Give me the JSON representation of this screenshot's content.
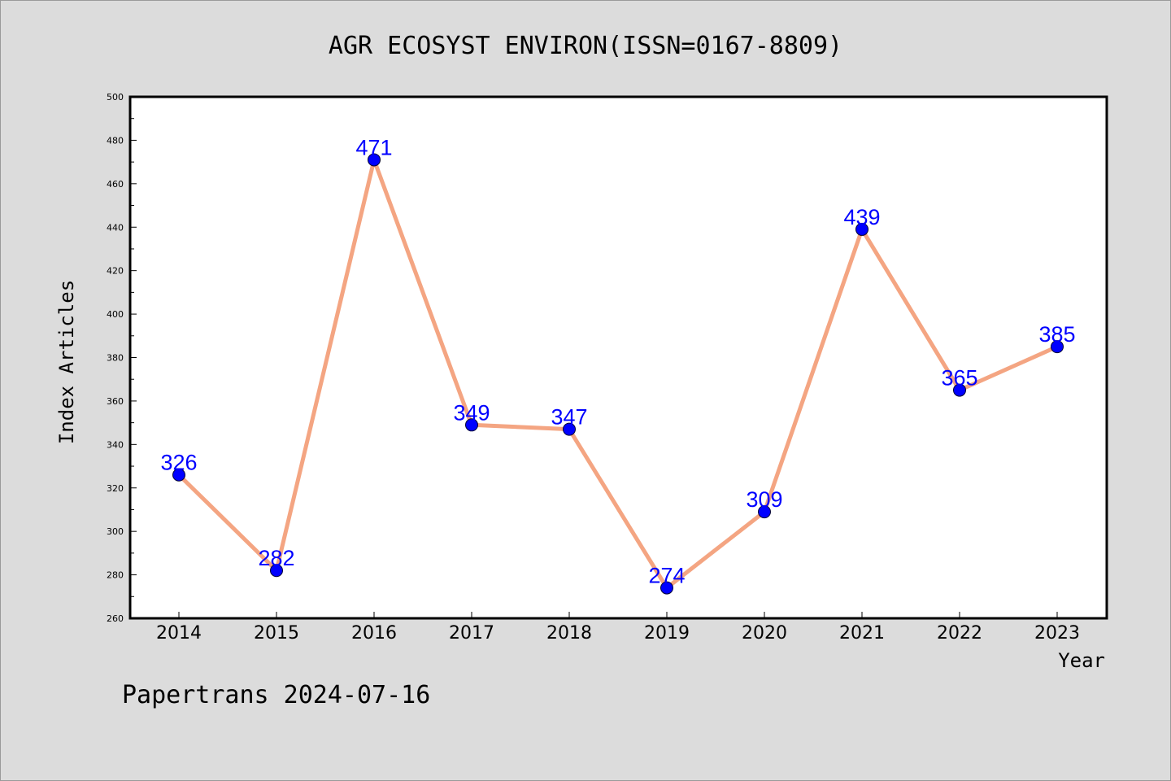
{
  "chart_data": {
    "type": "line",
    "title": "AGR ECOSYST ENVIRON(ISSN=0167-8809)",
    "xlabel": "Year",
    "ylabel": "Index Articles",
    "categories": [
      "2014",
      "2015",
      "2016",
      "2017",
      "2018",
      "2019",
      "2020",
      "2021",
      "2022",
      "2023"
    ],
    "values": [
      326,
      282,
      471,
      349,
      347,
      274,
      309,
      439,
      365,
      385
    ],
    "ylim": [
      260,
      500
    ],
    "yticks": [
      260,
      280,
      300,
      320,
      340,
      360,
      380,
      400,
      420,
      440,
      460,
      480,
      500
    ],
    "grid": false,
    "line_color": "#f4a582",
    "marker_color": "#0000ff",
    "label_color": "#0000ff"
  },
  "footer": "Papertrans 2024-07-16"
}
